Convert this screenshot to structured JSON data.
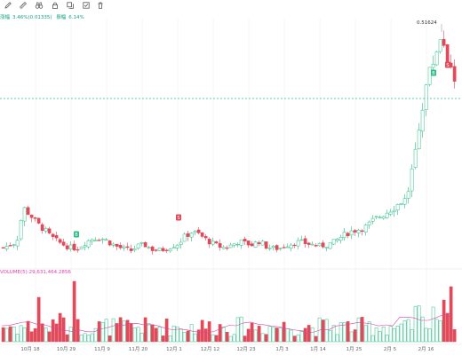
{
  "toolbar": {
    "icons": [
      "pencil-icon",
      "ruler-icon",
      "binoculars-icon",
      "lock-icon",
      "copy-icon",
      "checkbox-icon",
      "trash-icon"
    ]
  },
  "stats": {
    "change_label": "涨幅",
    "change_value": "3.46%(0.01335)",
    "amplitude_label": "振幅",
    "amplitude_value": "6.14%"
  },
  "price": {
    "max_label": "0.51624"
  },
  "volume": {
    "label": "VOLUME(5):29,631,464.2856"
  },
  "x_axis": {
    "labels": [
      "10月 18",
      "10月 29",
      "11月 9",
      "11月 20",
      "12月 1",
      "12月 12",
      "12月 23",
      "1月 3",
      "1月 14",
      "1月 25",
      "2月 5",
      "2月 16"
    ]
  },
  "markers": [
    {
      "label": "B",
      "type": "buy"
    },
    {
      "label": "S",
      "type": "sell"
    },
    {
      "label": "B",
      "type": "buy"
    },
    {
      "label": "S",
      "type": "sell"
    }
  ],
  "colors": {
    "up": "#2ebd85",
    "down": "#e04b5a",
    "stats": "#1aa383",
    "volume_label": "#d946a8",
    "grid": "#eeeeee"
  },
  "chart_data": {
    "type": "candlestick",
    "title": "",
    "price_range": [
      0.18,
      0.52
    ],
    "reference_price": 0.43,
    "max_price": 0.51624,
    "trend_close": [
      0.206,
      0.21,
      0.214,
      0.262,
      0.252,
      0.24,
      0.232,
      0.222,
      0.215,
      0.21,
      0.206,
      0.205,
      0.212,
      0.218,
      0.22,
      0.218,
      0.212,
      0.207,
      0.204,
      0.202,
      0.208,
      0.21,
      0.204,
      0.202,
      0.204,
      0.208,
      0.212,
      0.222,
      0.228,
      0.225,
      0.218,
      0.212,
      0.208,
      0.206,
      0.21,
      0.215,
      0.212,
      0.21,
      0.215,
      0.208,
      0.205,
      0.205,
      0.21,
      0.212,
      0.214,
      0.212,
      0.21,
      0.208,
      0.21,
      0.213,
      0.22,
      0.226,
      0.23,
      0.232,
      0.236,
      0.245,
      0.25,
      0.256,
      0.262,
      0.27,
      0.275,
      0.33,
      0.39,
      0.445,
      0.47,
      0.505,
      0.47,
      0.44
    ],
    "volume_range": [
      0,
      100
    ]
  }
}
